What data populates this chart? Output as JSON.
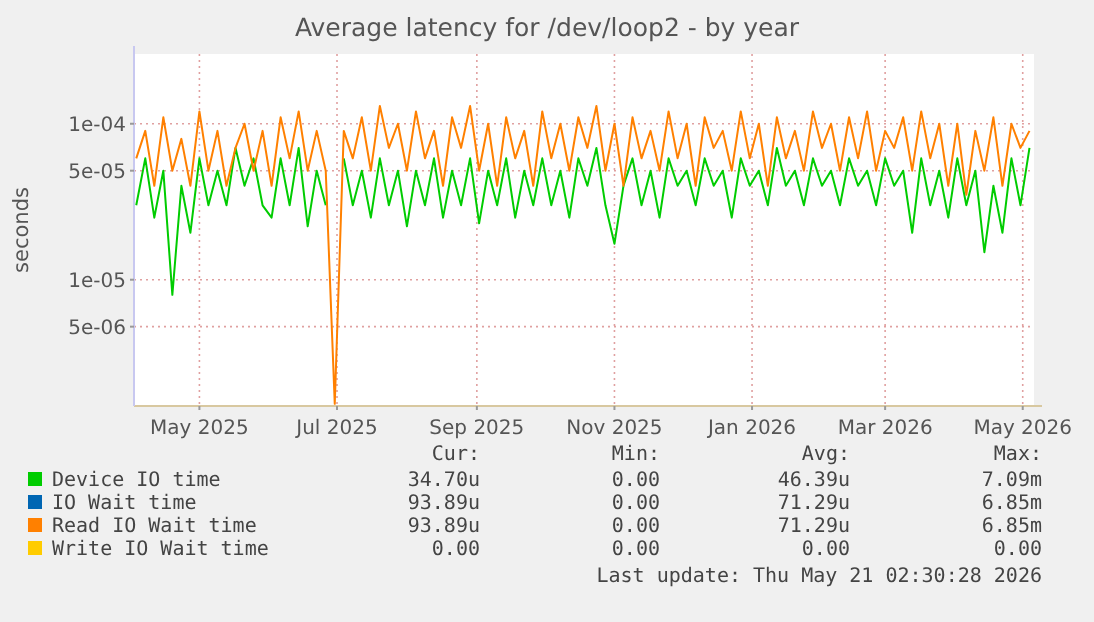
{
  "chart_data": {
    "type": "line",
    "title": "Average latency for /dev/loop2 - by year",
    "ylabel": "seconds",
    "log": "y",
    "grid": true,
    "legend": "bottom",
    "marker": "none",
    "line_style": "solid",
    "xlim": [
      "2025-04-02",
      "2026-05-06"
    ],
    "xticks": [
      {
        "value": "2025-05-01",
        "label": "May 2025"
      },
      {
        "value": "2025-07-01",
        "label": "Jul 2025"
      },
      {
        "value": "2025-09-01",
        "label": "Sep 2025"
      },
      {
        "value": "2025-11-01",
        "label": "Nov 2025"
      },
      {
        "value": "2026-01-01",
        "label": "Jan 2026"
      },
      {
        "value": "2026-03-01",
        "label": "Mar 2026"
      },
      {
        "value": "2026-05-01",
        "label": "May 2026"
      }
    ],
    "ylim": [
      1.55e-06,
      0.00028
    ],
    "yticks": [
      {
        "value": 5e-06,
        "label": "5e-06"
      },
      {
        "value": 1e-05,
        "label": "1e-05"
      },
      {
        "value": 5e-05,
        "label": "5e-05"
      },
      {
        "value": 0.0001,
        "label": "1e-04"
      }
    ],
    "x": [
      "2025-04-03",
      "2025-04-07",
      "2025-04-11",
      "2025-04-15",
      "2025-04-19",
      "2025-04-23",
      "2025-04-27",
      "2025-05-01",
      "2025-05-05",
      "2025-05-09",
      "2025-05-13",
      "2025-05-17",
      "2025-05-21",
      "2025-05-25",
      "2025-05-29",
      "2025-06-02",
      "2025-06-06",
      "2025-06-10",
      "2025-06-14",
      "2025-06-18",
      "2025-06-22",
      "2025-06-26",
      "2025-06-30",
      "2025-07-04",
      "2025-07-08",
      "2025-07-12",
      "2025-07-16",
      "2025-07-20",
      "2025-07-24",
      "2025-07-28",
      "2025-08-01",
      "2025-08-05",
      "2025-08-09",
      "2025-08-13",
      "2025-08-17",
      "2025-08-21",
      "2025-08-25",
      "2025-08-29",
      "2025-09-02",
      "2025-09-06",
      "2025-09-10",
      "2025-09-14",
      "2025-09-18",
      "2025-09-22",
      "2025-09-26",
      "2025-09-30",
      "2025-10-04",
      "2025-10-08",
      "2025-10-12",
      "2025-10-16",
      "2025-10-20",
      "2025-10-24",
      "2025-10-28",
      "2025-11-01",
      "2025-11-05",
      "2025-11-09",
      "2025-11-13",
      "2025-11-17",
      "2025-11-21",
      "2025-11-25",
      "2025-11-29",
      "2025-12-03",
      "2025-12-07",
      "2025-12-11",
      "2025-12-15",
      "2025-12-19",
      "2025-12-23",
      "2025-12-27",
      "2025-12-31",
      "2026-01-04",
      "2026-01-08",
      "2026-01-12",
      "2026-01-16",
      "2026-01-20",
      "2026-01-24",
      "2026-01-28",
      "2026-02-01",
      "2026-02-05",
      "2026-02-09",
      "2026-02-13",
      "2026-02-17",
      "2026-02-21",
      "2026-02-25",
      "2026-03-01",
      "2026-03-05",
      "2026-03-09",
      "2026-03-13",
      "2026-03-17",
      "2026-03-21",
      "2026-03-25",
      "2026-03-29",
      "2026-04-02",
      "2026-04-06",
      "2026-04-10",
      "2026-04-14",
      "2026-04-18",
      "2026-04-22",
      "2026-04-26",
      "2026-04-30",
      "2026-05-04"
    ],
    "series": [
      {
        "name": "Device IO time",
        "color": "#00cc00",
        "values": [
          3e-05,
          6e-05,
          2.5e-05,
          5e-05,
          8e-06,
          4e-05,
          2e-05,
          6e-05,
          3e-05,
          5e-05,
          3e-05,
          7e-05,
          4e-05,
          6e-05,
          3e-05,
          2.5e-05,
          6e-05,
          3e-05,
          7e-05,
          2.2e-05,
          5e-05,
          3e-05,
          null,
          6e-05,
          3e-05,
          5e-05,
          2.5e-05,
          6e-05,
          3e-05,
          5e-05,
          2.2e-05,
          5e-05,
          3e-05,
          6e-05,
          2.5e-05,
          5e-05,
          3e-05,
          6e-05,
          2.3e-05,
          5e-05,
          3e-05,
          6e-05,
          2.5e-05,
          5e-05,
          3e-05,
          6e-05,
          3e-05,
          5e-05,
          2.5e-05,
          6e-05,
          4e-05,
          7e-05,
          3e-05,
          1.7e-05,
          4e-05,
          6e-05,
          3e-05,
          5e-05,
          2.5e-05,
          6e-05,
          4e-05,
          5e-05,
          3e-05,
          6e-05,
          4e-05,
          5e-05,
          2.5e-05,
          6e-05,
          4e-05,
          5e-05,
          3e-05,
          7e-05,
          4e-05,
          5e-05,
          3e-05,
          6e-05,
          4e-05,
          5e-05,
          3e-05,
          6e-05,
          4e-05,
          5e-05,
          3e-05,
          6e-05,
          4e-05,
          5e-05,
          2e-05,
          6e-05,
          3e-05,
          5e-05,
          2.5e-05,
          6e-05,
          3e-05,
          5e-05,
          1.5e-05,
          4e-05,
          2e-05,
          6e-05,
          3e-05,
          7e-05
        ]
      },
      {
        "name": "IO Wait time",
        "color": "#0066b3",
        "values": [
          null,
          null,
          null,
          null,
          null,
          null,
          null,
          null,
          null,
          null,
          null,
          null,
          null,
          null,
          null,
          null,
          null,
          null,
          null,
          null,
          null,
          null,
          null,
          null,
          null,
          null,
          null,
          null,
          null,
          null,
          null,
          null,
          null,
          null,
          null,
          null,
          null,
          null,
          null,
          null,
          null,
          null,
          null,
          null,
          null,
          null,
          null,
          null,
          null,
          null,
          null,
          null,
          null,
          null,
          null,
          null,
          null,
          null,
          null,
          null,
          null,
          null,
          null,
          null,
          null,
          null,
          null,
          null,
          null,
          null,
          null,
          null,
          null,
          null,
          null,
          null,
          null,
          null,
          null,
          null,
          null,
          null,
          null,
          null,
          null,
          null,
          null,
          null,
          null,
          null,
          null,
          null,
          null,
          null,
          null,
          null,
          null,
          null,
          null,
          null
        ]
      },
      {
        "name": "Read IO Wait time",
        "color": "#ff8000",
        "values": [
          6e-05,
          9e-05,
          4e-05,
          0.00011,
          5e-05,
          8e-05,
          4e-05,
          0.00012,
          5e-05,
          9e-05,
          4e-05,
          7e-05,
          0.0001,
          5e-05,
          9e-05,
          4e-05,
          0.00011,
          6e-05,
          0.00012,
          5e-05,
          9e-05,
          5e-05,
          1.6e-06,
          9e-05,
          6e-05,
          0.00011,
          5e-05,
          0.00013,
          7e-05,
          0.0001,
          5e-05,
          0.00012,
          6e-05,
          9e-05,
          4e-05,
          0.00011,
          7e-05,
          0.00013,
          5e-05,
          0.0001,
          4e-05,
          0.00011,
          6e-05,
          9e-05,
          4e-05,
          0.00012,
          6e-05,
          0.0001,
          5e-05,
          0.00011,
          7e-05,
          0.00013,
          5e-05,
          0.0001,
          4e-05,
          0.00011,
          6e-05,
          9e-05,
          5e-05,
          0.00012,
          6e-05,
          0.0001,
          4e-05,
          0.00011,
          7e-05,
          9e-05,
          5e-05,
          0.00012,
          6e-05,
          0.0001,
          4e-05,
          0.00011,
          6e-05,
          9e-05,
          5e-05,
          0.00012,
          7e-05,
          0.0001,
          5e-05,
          0.00011,
          6e-05,
          0.00012,
          5e-05,
          9e-05,
          7e-05,
          0.00011,
          5e-05,
          0.00012,
          6e-05,
          0.0001,
          4e-05,
          0.0001,
          3.5e-05,
          9e-05,
          5e-05,
          0.00011,
          4e-05,
          0.0001,
          7e-05,
          9e-05
        ]
      },
      {
        "name": "Write IO Wait time",
        "color": "#ffcc00",
        "values": [
          null,
          null,
          null,
          null,
          null,
          null,
          null,
          null,
          null,
          null,
          null,
          null,
          null,
          null,
          null,
          null,
          null,
          null,
          null,
          null,
          null,
          null,
          null,
          null,
          null,
          null,
          null,
          null,
          null,
          null,
          null,
          null,
          null,
          null,
          null,
          null,
          null,
          null,
          null,
          null,
          null,
          null,
          null,
          null,
          null,
          null,
          null,
          null,
          null,
          null,
          null,
          null,
          null,
          null,
          null,
          null,
          null,
          null,
          null,
          null,
          null,
          null,
          null,
          null,
          null,
          null,
          null,
          null,
          null,
          null,
          null,
          null,
          null,
          null,
          null,
          null,
          null,
          null,
          null,
          null,
          null,
          null,
          null,
          null,
          null,
          null,
          null,
          null,
          null,
          null,
          null,
          null,
          null,
          null,
          null,
          null,
          null,
          null,
          null,
          null
        ]
      }
    ],
    "annotations": [
      "Cur:",
      "Min:",
      "Avg:",
      "Max:",
      "34.70u",
      "0.00",
      "46.39u",
      "7.09m",
      "93.89u",
      "0.00",
      "71.29u",
      "6.85m",
      "93.89u",
      "0.00",
      "71.29u",
      "6.85m",
      "0.00",
      "0.00",
      "0.00",
      "0.00",
      "Last update: Thu May 21 02:30:28 2026"
    ]
  }
}
